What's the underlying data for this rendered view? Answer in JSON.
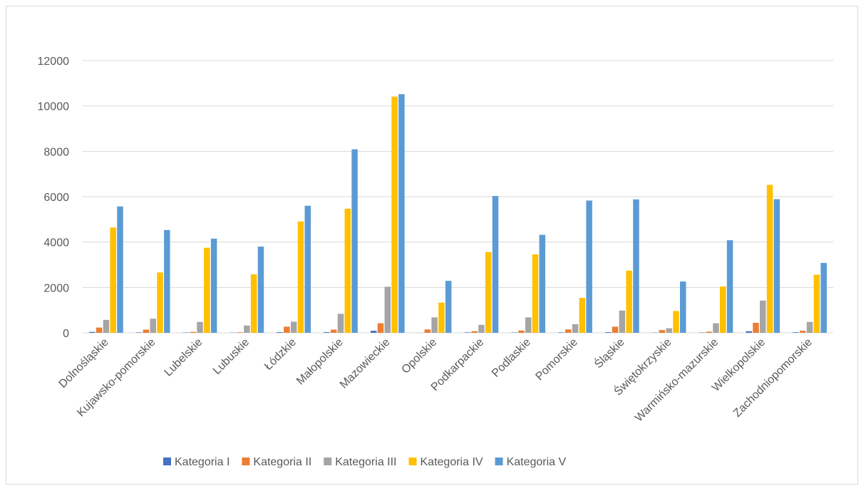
{
  "chart_data": {
    "type": "bar",
    "title": "",
    "xlabel": "",
    "ylabel": "",
    "ylim": [
      0,
      12000
    ],
    "yticks": [
      0,
      2000,
      4000,
      6000,
      8000,
      10000,
      12000
    ],
    "grid": true,
    "legend_position": "bottom",
    "categories": [
      "Dolnośląskie",
      "Kujawsko-pomorskie",
      "Lubelskie",
      "Lubuskie",
      "Łódzkie",
      "Małopolskie",
      "Mazowieckie",
      "Opolskie",
      "Podkarpackie",
      "Podlaskie",
      "Pomorskie",
      "Śląskie",
      "Świętokrzyskie",
      "Warmińsko-mazurskie",
      "Wielkopolskie",
      "Zachodniopomorskie"
    ],
    "series": [
      {
        "name": "Kategoria I",
        "color": "#4472c4",
        "values": [
          40,
          20,
          15,
          10,
          30,
          30,
          90,
          5,
          20,
          15,
          20,
          30,
          10,
          15,
          70,
          25
        ]
      },
      {
        "name": "Kategoria II",
        "color": "#ed7d31",
        "values": [
          230,
          140,
          40,
          25,
          270,
          140,
          420,
          150,
          70,
          100,
          150,
          270,
          120,
          50,
          440,
          90
        ]
      },
      {
        "name": "Kategoria III",
        "color": "#a5a5a5",
        "values": [
          570,
          620,
          480,
          320,
          490,
          840,
          2030,
          680,
          350,
          680,
          380,
          980,
          200,
          420,
          1420,
          480
        ]
      },
      {
        "name": "Kategoria IV",
        "color": "#ffc000",
        "values": [
          4640,
          2660,
          3750,
          2580,
          4910,
          5470,
          10410,
          1330,
          3560,
          3460,
          1540,
          2740,
          960,
          2040,
          6520,
          2560
        ]
      },
      {
        "name": "Kategoria V",
        "color": "#5b9bd5",
        "values": [
          5570,
          4530,
          4150,
          3800,
          5600,
          8090,
          10520,
          2290,
          6030,
          4320,
          5830,
          5880,
          2260,
          4080,
          5890,
          3080
        ]
      }
    ]
  }
}
